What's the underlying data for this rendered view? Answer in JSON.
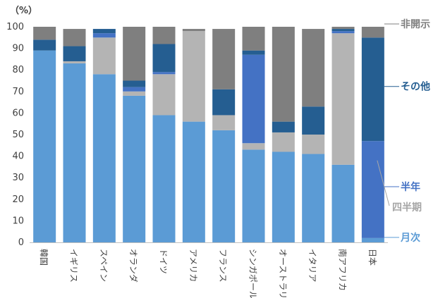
{
  "chart_data": {
    "type": "bar",
    "stacked": true,
    "unit_label": "（%）",
    "ylim": [
      0,
      100
    ],
    "yticks": [
      0,
      10,
      20,
      30,
      40,
      50,
      60,
      70,
      80,
      90,
      100
    ],
    "grid": false,
    "legend_position": "right",
    "categories": [
      "韓国",
      "イギリス",
      "スペイン",
      "オランダ",
      "ドイツ",
      "アメリカ",
      "フランス",
      "シンガポール",
      "オーストラリア",
      "イタリア",
      "南アフリカ",
      "日本"
    ],
    "series": [
      {
        "name": "月次",
        "color": "#5B9BD5",
        "label_color": "#5B9BD5",
        "values": [
          89,
          83,
          78,
          68,
          59,
          56,
          52,
          43,
          42,
          41,
          36,
          2
        ]
      },
      {
        "name": "四半期",
        "color": "#B4B4B4",
        "label_color": "#A6A6A6",
        "values": [
          0,
          1,
          17,
          2,
          19,
          42,
          7,
          3,
          9,
          9,
          61,
          0
        ]
      },
      {
        "name": "半年",
        "color": "#4472C4",
        "label_color": "#4472C4",
        "values": [
          0,
          0,
          2,
          2,
          1,
          0,
          0,
          41,
          0,
          0,
          1,
          45
        ]
      },
      {
        "name": "その他",
        "color": "#255E91",
        "label_color": "#255E91",
        "values": [
          5,
          7,
          2,
          3,
          13,
          0,
          12,
          2,
          5,
          13,
          1,
          48
        ]
      },
      {
        "name": "非開示",
        "color": "#7F7F7F",
        "label_color": "#7F7F7F",
        "values": [
          6,
          8,
          0,
          25,
          8,
          1,
          28,
          11,
          44,
          36,
          1,
          5
        ]
      }
    ]
  }
}
